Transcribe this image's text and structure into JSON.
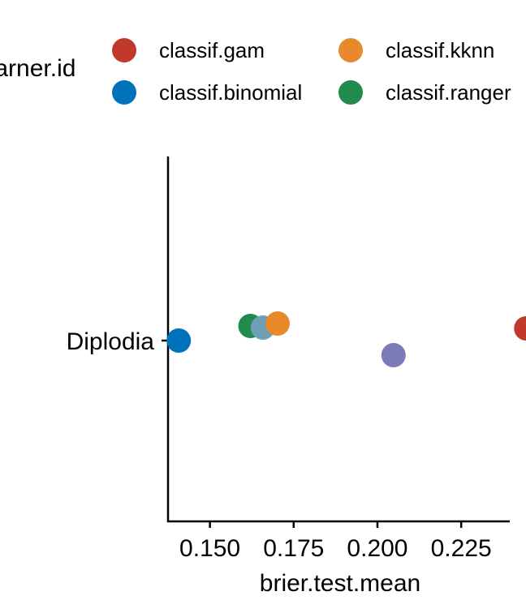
{
  "legend": {
    "title": "learner.id",
    "items": [
      {
        "label": "classif.gam",
        "color": "#C0392B"
      },
      {
        "label": "classif.kknn",
        "color": "#E8892B"
      },
      {
        "label": "classif.binomial",
        "color": "#0072BC"
      },
      {
        "label": "classif.ranger",
        "color": "#218A4D"
      }
    ]
  },
  "chart_data": {
    "type": "scatter",
    "title": "",
    "xlabel": "brier.test.mean",
    "ylabel": "",
    "categories": [
      "Diplodia"
    ],
    "xlim": [
      0.1375,
      0.2395
    ],
    "xticks": [
      0.15,
      0.175,
      0.2,
      0.225
    ],
    "xtick_labels": [
      "0.150",
      "0.175",
      "0.200",
      "0.225"
    ],
    "grid": false,
    "legend_position": "top",
    "points": [
      {
        "series": "classif.binomial",
        "x": 0.1407,
        "category": "Diplodia",
        "color": "#0072BC"
      },
      {
        "series": "classif.ranger",
        "x": 0.1621,
        "category": "Diplodia",
        "color": "#218A4D"
      },
      {
        "series": "",
        "x": 0.1658,
        "category": "Diplodia",
        "color": "#6F9FB5"
      },
      {
        "series": "classif.kknn",
        "x": 0.1702,
        "category": "Diplodia",
        "color": "#E8892B"
      },
      {
        "series": "",
        "x": 0.2048,
        "category": "Diplodia",
        "color": "#7D7AB8"
      },
      {
        "series": "classif.gam",
        "x": 0.2444,
        "category": "Diplodia",
        "color": "#C0392B"
      }
    ]
  }
}
